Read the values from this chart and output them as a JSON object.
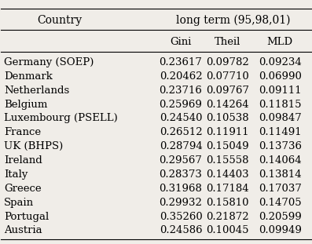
{
  "title_col1": "Country",
  "title_group": "long term (95,98,01)",
  "sub_headers": [
    "Gini",
    "Theil",
    "MLD"
  ],
  "rows": [
    [
      "Germany (SOEP)",
      "0.23617",
      "0.09782",
      "0.09234"
    ],
    [
      "Denmark",
      "0.20462",
      "0.07710",
      "0.06990"
    ],
    [
      "Netherlands",
      "0.23716",
      "0.09767",
      "0.09111"
    ],
    [
      "Belgium",
      "0.25969",
      "0.14264",
      "0.11815"
    ],
    [
      "Luxembourg (PSELL)",
      "0.24540",
      "0.10538",
      "0.09847"
    ],
    [
      "France",
      "0.26512",
      "0.11911",
      "0.11491"
    ],
    [
      "UK (BHPS)",
      "0.28794",
      "0.15049",
      "0.13736"
    ],
    [
      "Ireland",
      "0.29567",
      "0.15558",
      "0.14064"
    ],
    [
      "Italy",
      "0.28373",
      "0.14403",
      "0.13814"
    ],
    [
      "Greece",
      "0.31968",
      "0.17184",
      "0.17037"
    ],
    [
      "Spain",
      "0.29932",
      "0.15810",
      "0.14705"
    ],
    [
      "Portugal",
      "0.35260",
      "0.21872",
      "0.20599"
    ],
    [
      "Austria",
      "0.24586",
      "0.10045",
      "0.09949"
    ]
  ],
  "bg_color": "#f0ede8",
  "font_size": 9.5,
  "title_font_size": 10
}
